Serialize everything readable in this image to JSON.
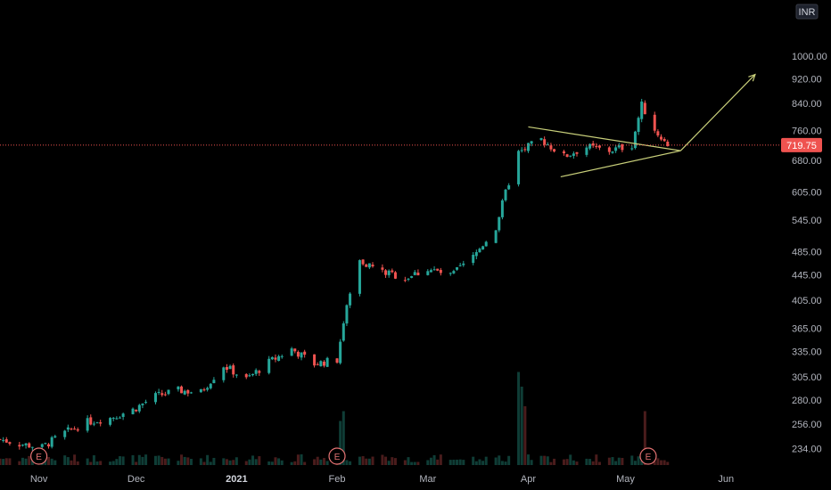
{
  "currency": "INR",
  "last_price": "719.75",
  "colors": {
    "background": "#000000",
    "up": "#26a69a",
    "down": "#ef5350",
    "up_volume": "#0f3d36",
    "down_volume": "#4a1c1c",
    "pattern": "#c8cf7a",
    "price_line": "#ef5350",
    "axis_text": "#b2b5be"
  },
  "earnings_marker_label": "E",
  "chart_data": {
    "type": "candlestick",
    "y_scale": "log",
    "ylim": [
      220,
      1200
    ],
    "y_ticks": [
      "1000.00",
      "920.00",
      "840.00",
      "760.00",
      "680.00",
      "605.00",
      "545.00",
      "485.00",
      "445.00",
      "405.00",
      "365.00",
      "335.00",
      "305.00",
      "280.00",
      "256.00",
      "234.00"
    ],
    "x_ticks": [
      {
        "label": "Nov",
        "date": "2020-11-01"
      },
      {
        "label": "Dec",
        "date": "2020-12-01"
      },
      {
        "label": "2021",
        "date": "2021-01-01"
      },
      {
        "label": "Feb",
        "date": "2021-02-01"
      },
      {
        "label": "Mar",
        "date": "2021-03-01"
      },
      {
        "label": "Apr",
        "date": "2021-04-01"
      },
      {
        "label": "May",
        "date": "2021-05-01"
      },
      {
        "label": "Jun",
        "date": "2021-06-01"
      }
    ],
    "xlim": [
      "2020-10-20",
      "2021-06-18"
    ],
    "earnings_dates": [
      "2020-11-01",
      "2021-02-01",
      "2021-05-08"
    ],
    "last_price": 719.75,
    "close_path": [
      [
        "2020-10-20",
        242
      ],
      [
        "2020-10-26",
        238
      ],
      [
        "2020-11-02",
        235
      ],
      [
        "2020-11-09",
        248
      ],
      [
        "2020-11-16",
        258
      ],
      [
        "2020-11-23",
        262
      ],
      [
        "2020-11-30",
        270
      ],
      [
        "2020-12-07",
        284
      ],
      [
        "2020-12-14",
        290
      ],
      [
        "2020-12-21",
        288
      ],
      [
        "2020-12-28",
        318
      ],
      [
        "2021-01-04",
        302
      ],
      [
        "2021-01-11",
        322
      ],
      [
        "2021-01-18",
        338
      ],
      [
        "2021-01-25",
        320
      ],
      [
        "2021-02-01",
        325
      ],
      [
        "2021-02-04",
        395
      ],
      [
        "2021-02-08",
        470
      ],
      [
        "2021-02-15",
        450
      ],
      [
        "2021-02-22",
        440
      ],
      [
        "2021-03-01",
        455
      ],
      [
        "2021-03-08",
        443
      ],
      [
        "2021-03-15",
        475
      ],
      [
        "2021-03-22",
        530
      ],
      [
        "2021-03-29",
        700
      ],
      [
        "2021-04-05",
        735
      ],
      [
        "2021-04-12",
        690
      ],
      [
        "2021-04-19",
        715
      ],
      [
        "2021-04-26",
        705
      ],
      [
        "2021-05-03",
        720
      ],
      [
        "2021-05-06",
        835
      ],
      [
        "2021-05-10",
        760
      ],
      [
        "2021-05-14",
        719.75
      ]
    ],
    "volume_spikes": [
      {
        "date": "2021-02-02",
        "relative": 0.45
      },
      {
        "date": "2021-02-03",
        "relative": 0.55
      },
      {
        "date": "2021-03-29",
        "relative": 0.95
      },
      {
        "date": "2021-03-30",
        "relative": 0.8
      },
      {
        "date": "2021-03-31",
        "relative": 0.6
      },
      {
        "date": "2021-05-07",
        "relative": 0.55
      }
    ],
    "triangle_pattern": {
      "upper": [
        [
          "2021-04-01",
          770
        ],
        [
          "2021-05-18",
          705
        ]
      ],
      "lower": [
        [
          "2021-04-11",
          640
        ],
        [
          "2021-05-18",
          705
        ]
      ]
    },
    "projection_arrow": [
      [
        "2021-05-18",
        705
      ],
      [
        "2021-06-10",
        935
      ]
    ]
  }
}
